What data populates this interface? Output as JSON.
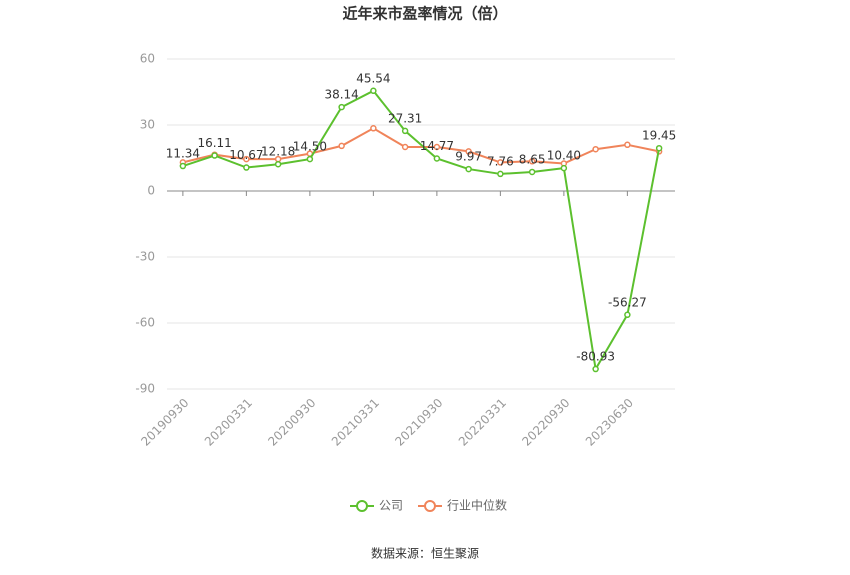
{
  "chart_data": {
    "type": "line",
    "title": "近年来市盈率情况（倍）",
    "categories": [
      "20190930",
      null,
      "20200331",
      null,
      "20200930",
      null,
      "20210331",
      null,
      "20210930",
      null,
      "20220331",
      null,
      "20220930",
      null,
      "20230630",
      null
    ],
    "series": [
      {
        "name": "公司",
        "color": "#5cc02e",
        "values": [
          11.34,
          16.11,
          10.67,
          12.18,
          14.5,
          38.14,
          45.54,
          27.31,
          14.77,
          9.97,
          7.76,
          8.65,
          10.4,
          -80.93,
          -56.27,
          19.45
        ],
        "value_labels": [
          "11.34",
          "16.11",
          "10.67",
          "12.18",
          "14.50",
          "38.14",
          "45.54",
          "27.31",
          "14.77",
          "9.97",
          "7.76",
          "8.65",
          "10.40",
          "-80.93",
          "-56.27",
          "19.45"
        ]
      },
      {
        "name": "行业中位数",
        "color": "#f0845a",
        "values": [
          13,
          16.5,
          14.5,
          14.5,
          17,
          20.5,
          28.5,
          20,
          20,
          18,
          13,
          13.5,
          12.5,
          19,
          21,
          18
        ]
      }
    ],
    "ylim": [
      -90,
      60
    ],
    "yticks": [
      -90,
      -60,
      -30,
      0,
      30,
      60
    ],
    "grid": true,
    "source": "数据来源：恒生聚源"
  }
}
